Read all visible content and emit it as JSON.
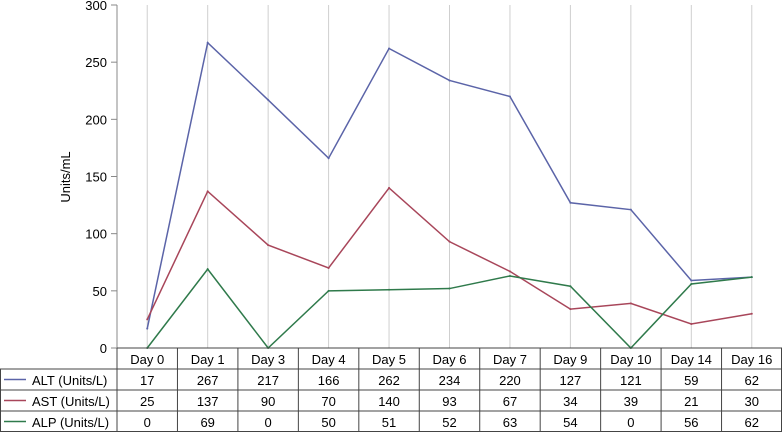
{
  "chart_data": {
    "type": "line",
    "title": "",
    "xlabel": "",
    "ylabel": "Units/mL",
    "ylim": [
      0,
      300
    ],
    "yticks": [
      0,
      50,
      100,
      150,
      200,
      250,
      300
    ],
    "grid": "vertical",
    "legend": "table-left",
    "categories": [
      "Day 0",
      "Day 1",
      "Day 3",
      "Day 4",
      "Day 5",
      "Day 6",
      "Day 7",
      "Day 9",
      "Day 10",
      "Day 14",
      "Day 16"
    ],
    "series": [
      {
        "name": "ALT (Units/L)",
        "color": "#5b64a8",
        "values": [
          17,
          267,
          217,
          166,
          262,
          234,
          220,
          127,
          121,
          59,
          62
        ]
      },
      {
        "name": "AST (Units/L)",
        "color": "#a8465a",
        "values": [
          25,
          137,
          90,
          70,
          140,
          93,
          67,
          34,
          39,
          21,
          30
        ]
      },
      {
        "name": "ALP (Units/L)",
        "color": "#2f7a4b",
        "values": [
          0,
          69,
          0,
          50,
          51,
          52,
          63,
          54,
          0,
          56,
          62
        ]
      }
    ]
  }
}
